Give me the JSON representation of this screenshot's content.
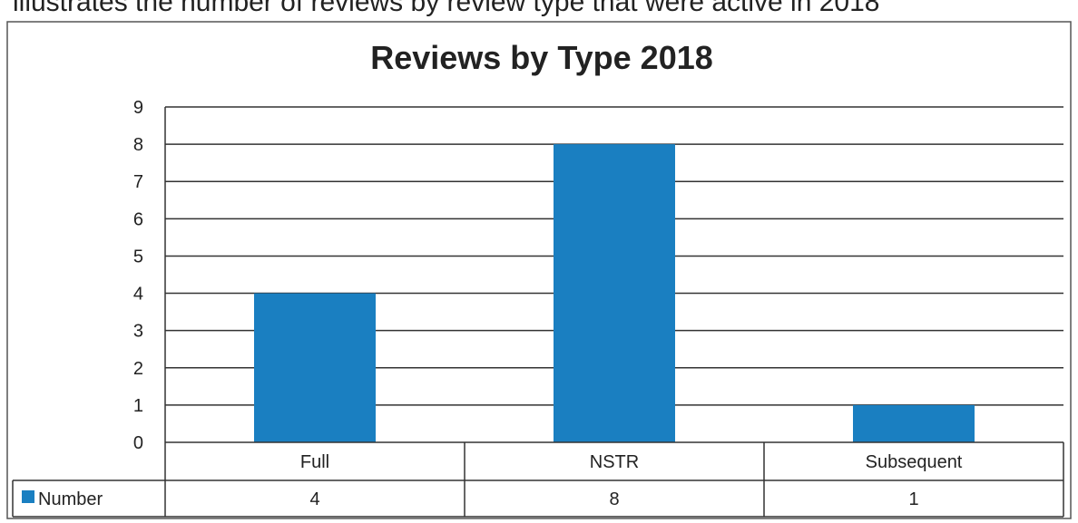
{
  "caption": "illustrates the number of reviews by review type that were active in 2018",
  "chart_data": {
    "type": "bar",
    "title": "Reviews by Type 2018",
    "categories": [
      "Full",
      "NSTR",
      "Subsequent"
    ],
    "series": [
      {
        "name": "Number",
        "values": [
          4,
          8,
          1
        ],
        "color": "#1a7fc1"
      }
    ],
    "ylim": [
      0,
      9
    ],
    "yticks": [
      "0",
      "1",
      "2",
      "3",
      "4",
      "5",
      "6",
      "7",
      "8",
      "9"
    ],
    "grid": true,
    "legend": "data-table",
    "table_values": [
      "4",
      "8",
      "1"
    ]
  }
}
